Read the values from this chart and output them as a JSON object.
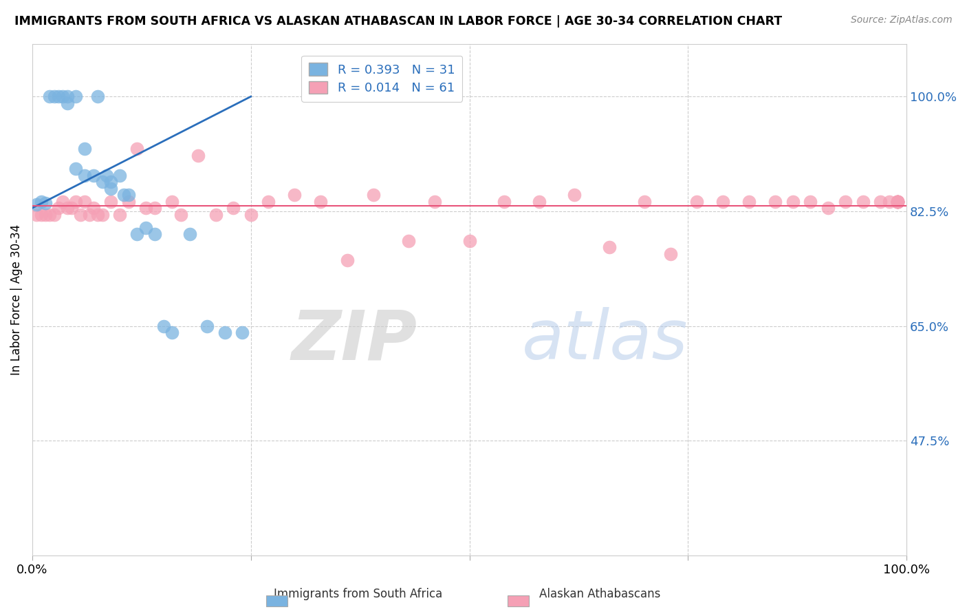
{
  "title": "IMMIGRANTS FROM SOUTH AFRICA VS ALASKAN ATHABASCAN IN LABOR FORCE | AGE 30-34 CORRELATION CHART",
  "source": "Source: ZipAtlas.com",
  "ylabel": "In Labor Force | Age 30-34",
  "xlim": [
    0.0,
    1.0
  ],
  "ylim": [
    0.3,
    1.08
  ],
  "yticks": [
    0.475,
    0.65,
    0.825,
    1.0
  ],
  "ytick_labels": [
    "47.5%",
    "65.0%",
    "82.5%",
    "100.0%"
  ],
  "blue_R": 0.393,
  "blue_N": 31,
  "pink_R": 0.014,
  "pink_N": 61,
  "blue_color": "#7ab3e0",
  "pink_color": "#f5a0b5",
  "blue_line_color": "#2a6ebb",
  "pink_line_color": "#e8547a",
  "legend_label_blue": "Immigrants from South Africa",
  "legend_label_pink": "Alaskan Athabascans",
  "watermark_zip": "ZIP",
  "watermark_atlas": "atlas",
  "blue_scatter_x": [
    0.005,
    0.01,
    0.015,
    0.02,
    0.025,
    0.03,
    0.035,
    0.04,
    0.04,
    0.05,
    0.05,
    0.06,
    0.06,
    0.07,
    0.075,
    0.08,
    0.085,
    0.09,
    0.09,
    0.1,
    0.105,
    0.11,
    0.12,
    0.13,
    0.14,
    0.15,
    0.16,
    0.18,
    0.2,
    0.22,
    0.24
  ],
  "blue_scatter_y": [
    0.835,
    0.84,
    0.838,
    1.0,
    1.0,
    1.0,
    1.0,
    1.0,
    0.99,
    1.0,
    0.89,
    0.92,
    0.88,
    0.88,
    1.0,
    0.87,
    0.88,
    0.87,
    0.86,
    0.88,
    0.85,
    0.85,
    0.79,
    0.8,
    0.79,
    0.65,
    0.64,
    0.79,
    0.65,
    0.64,
    0.64
  ],
  "pink_scatter_x": [
    0.005,
    0.01,
    0.015,
    0.02,
    0.025,
    0.03,
    0.035,
    0.04,
    0.045,
    0.05,
    0.055,
    0.06,
    0.065,
    0.07,
    0.075,
    0.08,
    0.09,
    0.1,
    0.11,
    0.12,
    0.13,
    0.14,
    0.16,
    0.17,
    0.19,
    0.21,
    0.23,
    0.25,
    0.27,
    0.3,
    0.33,
    0.36,
    0.39,
    0.43,
    0.46,
    0.5,
    0.54,
    0.58,
    0.62,
    0.66,
    0.7,
    0.73,
    0.76,
    0.79,
    0.82,
    0.85,
    0.87,
    0.89,
    0.91,
    0.93,
    0.95,
    0.97,
    0.98,
    0.99,
    0.99,
    0.99,
    0.99,
    0.99,
    0.99,
    0.99,
    0.99
  ],
  "pink_scatter_y": [
    0.82,
    0.82,
    0.82,
    0.82,
    0.82,
    0.83,
    0.84,
    0.83,
    0.83,
    0.84,
    0.82,
    0.84,
    0.82,
    0.83,
    0.82,
    0.82,
    0.84,
    0.82,
    0.84,
    0.92,
    0.83,
    0.83,
    0.84,
    0.82,
    0.91,
    0.82,
    0.83,
    0.82,
    0.84,
    0.85,
    0.84,
    0.75,
    0.85,
    0.78,
    0.84,
    0.78,
    0.84,
    0.84,
    0.85,
    0.77,
    0.84,
    0.76,
    0.84,
    0.84,
    0.84,
    0.84,
    0.84,
    0.84,
    0.83,
    0.84,
    0.84,
    0.84,
    0.84,
    0.84,
    0.84,
    0.84,
    0.84,
    0.84,
    0.84,
    0.84,
    0.84
  ],
  "blue_line_x": [
    0.0,
    0.25
  ],
  "blue_line_y": [
    0.83,
    1.0
  ],
  "pink_line_y": 0.833
}
